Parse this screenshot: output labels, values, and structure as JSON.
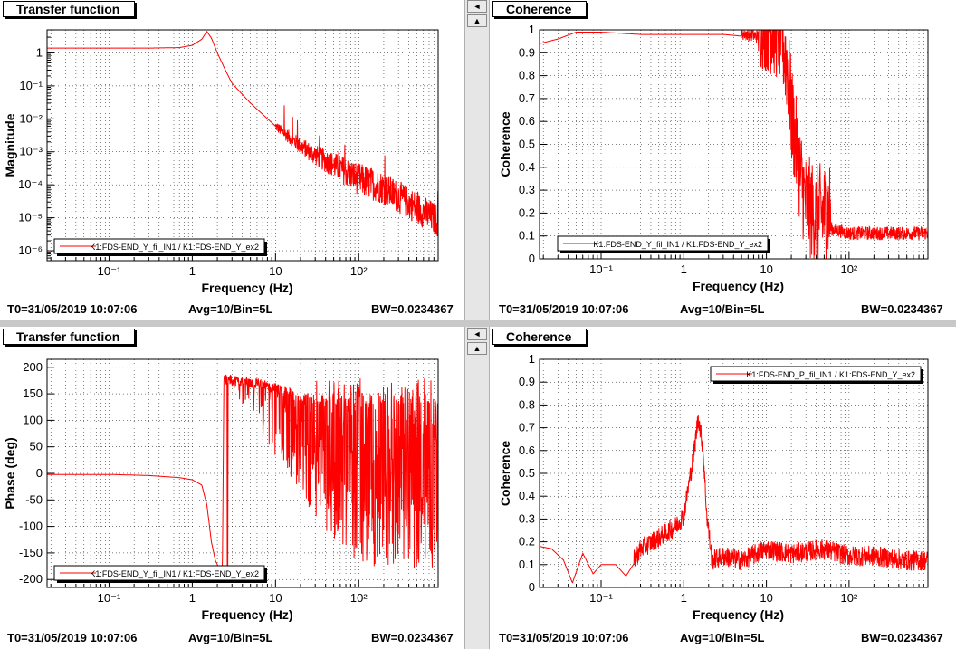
{
  "panels": [
    {
      "title": "Transfer function",
      "footer": {
        "t0": "T0=31/05/2019 10:07:06",
        "avg": "Avg=10/Bin=5L",
        "bw": "BW=0.0234367"
      },
      "chart_data": {
        "type": "line",
        "xscale": "log",
        "yscale": "log",
        "xlim": [
          0.018,
          900
        ],
        "ylim": [
          5e-07,
          5
        ],
        "xlabel": "Frequency (Hz)",
        "ylabel": "Magnitude",
        "xticks": [
          {
            "v": 0.1,
            "label": "10⁻¹"
          },
          {
            "v": 1,
            "label": "1"
          },
          {
            "v": 10,
            "label": "10"
          },
          {
            "v": 100,
            "label": "10²"
          }
        ],
        "yticks": [
          {
            "v": 1e-06,
            "label": "10⁻⁶"
          },
          {
            "v": 1e-05,
            "label": "10⁻⁵"
          },
          {
            "v": 0.0001,
            "label": "10⁻⁴"
          },
          {
            "v": 0.001,
            "label": "10⁻³"
          },
          {
            "v": 0.01,
            "label": "10⁻²"
          },
          {
            "v": 0.1,
            "label": "10⁻¹"
          },
          {
            "v": 1,
            "label": "1"
          }
        ],
        "legend": {
          "position": "bottom-left",
          "entries": [
            "K1:FDS-END_Y_fil_IN1 / K1:FDS-END_Y_ex2"
          ]
        },
        "series": [
          {
            "color": "#ff0000",
            "x": [
              0.018,
              0.05,
              0.1,
              0.3,
              0.7,
              1.0,
              1.3,
              1.5,
              1.7,
              2,
              2.5,
              3,
              5,
              10,
              20,
              30,
              50,
              100,
              200,
              500,
              900
            ],
            "y": [
              1.4,
              1.4,
              1.4,
              1.4,
              1.45,
              1.7,
              2.6,
              4.5,
              2.8,
              1.0,
              0.3,
              0.12,
              0.03,
              0.006,
              0.0015,
              0.0008,
              0.0004,
              0.00015,
              8e-05,
              2e-05,
              8e-06
            ]
          }
        ],
        "noise_from_x": 10
      }
    },
    {
      "title": "Coherence",
      "footer": {
        "t0": "T0=31/05/2019 10:07:06",
        "avg": "Avg=10/Bin=5L",
        "bw": "BW=0.0234367"
      },
      "chart_data": {
        "type": "line",
        "xscale": "log",
        "yscale": "linear",
        "xlim": [
          0.018,
          900
        ],
        "ylim": [
          0,
          1
        ],
        "xlabel": "Frequency (Hz)",
        "ylabel": "Coherence",
        "xticks": [
          {
            "v": 0.1,
            "label": "10⁻¹"
          },
          {
            "v": 1,
            "label": "1"
          },
          {
            "v": 10,
            "label": "10"
          },
          {
            "v": 100,
            "label": "10²"
          }
        ],
        "yticks": [
          {
            "v": 0,
            "label": "0"
          },
          {
            "v": 0.1,
            "label": "0.1"
          },
          {
            "v": 0.2,
            "label": "0.2"
          },
          {
            "v": 0.3,
            "label": "0.3"
          },
          {
            "v": 0.4,
            "label": "0.4"
          },
          {
            "v": 0.5,
            "label": "0.5"
          },
          {
            "v": 0.6,
            "label": "0.6"
          },
          {
            "v": 0.7,
            "label": "0.7"
          },
          {
            "v": 0.8,
            "label": "0.8"
          },
          {
            "v": 0.9,
            "label": "0.9"
          },
          {
            "v": 1,
            "label": "1"
          }
        ],
        "legend": {
          "position": "bottom-right",
          "entries": [
            "K1:FDS-END_Y_fil_IN1 / K1:FDS-END_Y_ex2"
          ]
        },
        "series": [
          {
            "color": "#ff0000",
            "x": [
              0.018,
              0.03,
              0.05,
              0.1,
              0.3,
              1,
              3,
              6,
              10,
              15,
              18,
              20,
              25,
              30,
              40,
              60,
              100,
              200,
              500,
              900
            ],
            "y": [
              0.94,
              0.96,
              0.99,
              0.99,
              0.98,
              0.98,
              0.98,
              0.97,
              0.95,
              0.9,
              0.75,
              0.55,
              0.3,
              0.15,
              0.1,
              0.12,
              0.1,
              0.1,
              0.1,
              0.1
            ]
          }
        ],
        "noise_from_x": 5
      }
    },
    {
      "title": "Transfer function",
      "footer": {
        "t0": "T0=31/05/2019 10:07:06",
        "avg": "Avg=10/Bin=5L",
        "bw": "BW=0.0234367"
      },
      "chart_data": {
        "type": "line",
        "xscale": "log",
        "yscale": "linear",
        "xlim": [
          0.018,
          900
        ],
        "ylim": [
          -215,
          215
        ],
        "xlabel": "Frequency (Hz)",
        "ylabel": "Phase (deg)",
        "xticks": [
          {
            "v": 0.1,
            "label": "10⁻¹"
          },
          {
            "v": 1,
            "label": "1"
          },
          {
            "v": 10,
            "label": "10"
          },
          {
            "v": 100,
            "label": "10²"
          }
        ],
        "yticks": [
          {
            "v": -200,
            "label": "-200"
          },
          {
            "v": -150,
            "label": "-150"
          },
          {
            "v": -100,
            "label": "-100"
          },
          {
            "v": -50,
            "label": "-50"
          },
          {
            "v": 0,
            "label": "0"
          },
          {
            "v": 50,
            "label": "50"
          },
          {
            "v": 100,
            "label": "100"
          },
          {
            "v": 150,
            "label": "150"
          },
          {
            "v": 200,
            "label": "200"
          }
        ],
        "legend": {
          "position": "bottom-left",
          "entries": [
            "K1:FDS-END_Y_fil_IN1 / K1:FDS-END_Y_ex2"
          ]
        },
        "series": [
          {
            "color": "#ff0000",
            "x": [
              0.018,
              0.1,
              0.3,
              0.7,
              1.0,
              1.3,
              1.5,
              1.7,
              1.9,
              2.1,
              2.3,
              2.4,
              3,
              5,
              8,
              10,
              15,
              20
            ],
            "y": [
              -2,
              -2,
              -4,
              -8,
              -12,
              -22,
              -60,
              -130,
              -165,
              -178,
              -178,
              178,
              176,
              172,
              165,
              160,
              150,
              140
            ]
          }
        ],
        "noise_from_x": 2.4
      }
    },
    {
      "title": "Coherence",
      "footer": {
        "t0": "T0=31/05/2019 10:07:06",
        "avg": "Avg=10/Bin=5L",
        "bw": "BW=0.0234367"
      },
      "chart_data": {
        "type": "line",
        "xscale": "log",
        "yscale": "linear",
        "xlim": [
          0.018,
          900
        ],
        "ylim": [
          0,
          1
        ],
        "xlabel": "Frequency (Hz)",
        "ylabel": "Coherence",
        "xticks": [
          {
            "v": 0.1,
            "label": "10⁻¹"
          },
          {
            "v": 1,
            "label": "1"
          },
          {
            "v": 10,
            "label": "10"
          },
          {
            "v": 100,
            "label": "10²"
          }
        ],
        "yticks": [
          {
            "v": 0,
            "label": "0"
          },
          {
            "v": 0.1,
            "label": "0.1"
          },
          {
            "v": 0.2,
            "label": "0.2"
          },
          {
            "v": 0.3,
            "label": "0.3"
          },
          {
            "v": 0.4,
            "label": "0.4"
          },
          {
            "v": 0.5,
            "label": "0.5"
          },
          {
            "v": 0.6,
            "label": "0.6"
          },
          {
            "v": 0.7,
            "label": "0.7"
          },
          {
            "v": 0.8,
            "label": "0.8"
          },
          {
            "v": 0.9,
            "label": "0.9"
          },
          {
            "v": 1,
            "label": "1"
          }
        ],
        "legend": {
          "position": "top-right",
          "entries": [
            "K1:FDS-END_P_fil_IN1 / K1:FDS-END_Y_ex2"
          ]
        },
        "series": [
          {
            "color": "#ff0000",
            "x": [
              0.018,
              0.025,
              0.035,
              0.045,
              0.06,
              0.08,
              0.1,
              0.15,
              0.2,
              0.3,
              0.5,
              0.8,
              1.0,
              1.3,
              1.5,
              1.7,
              1.9,
              2.2,
              3,
              5,
              10,
              20,
              50,
              100,
              200,
              500,
              900
            ],
            "y": [
              0.18,
              0.17,
              0.12,
              0.02,
              0.15,
              0.06,
              0.1,
              0.1,
              0.05,
              0.15,
              0.2,
              0.25,
              0.3,
              0.55,
              0.73,
              0.6,
              0.3,
              0.1,
              0.12,
              0.1,
              0.15,
              0.13,
              0.15,
              0.12,
              0.12,
              0.1,
              0.1
            ]
          }
        ],
        "noise_from_x": 0.25
      }
    }
  ],
  "controls": {
    "arrow_left": "◄",
    "arrow_up": "▲"
  }
}
